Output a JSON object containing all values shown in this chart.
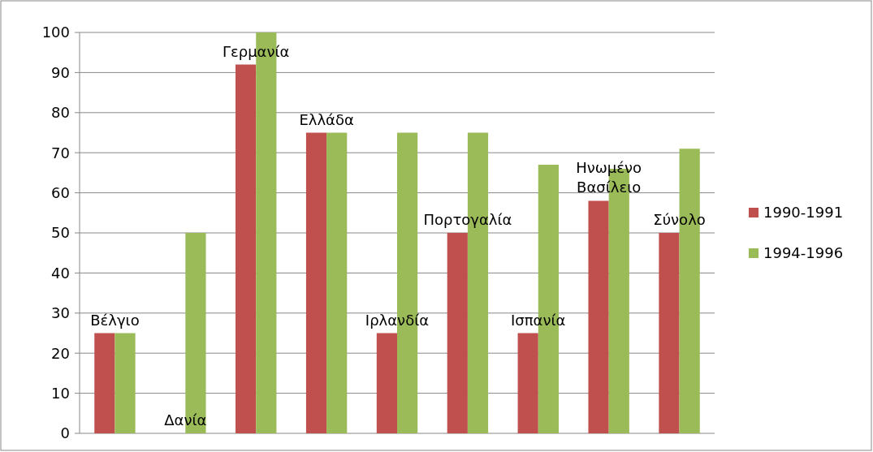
{
  "chart_data": {
    "type": "bar",
    "categories": [
      "Βέλγιο",
      "Δανία",
      "Γερμανία",
      "Ελλάδα",
      "Ιρλανδία",
      "Πορτογαλία",
      "Ισπανία",
      "Ηνωμένο Βασίλειο",
      "Σύνολο"
    ],
    "series": [
      {
        "name": "1990-1991",
        "color": "#c0504d",
        "values": [
          25,
          0,
          92,
          75,
          25,
          50,
          25,
          58,
          50
        ]
      },
      {
        "name": "1994-1996",
        "color": "#9bbb59",
        "values": [
          25,
          50,
          100,
          75,
          75,
          75,
          67,
          66,
          71
        ]
      }
    ],
    "ylim": [
      0,
      100
    ],
    "yticks": [
      0,
      10,
      20,
      30,
      40,
      50,
      60,
      70,
      80,
      90,
      100
    ],
    "grid": "y",
    "legend": "right",
    "tick_labels": "y"
  }
}
